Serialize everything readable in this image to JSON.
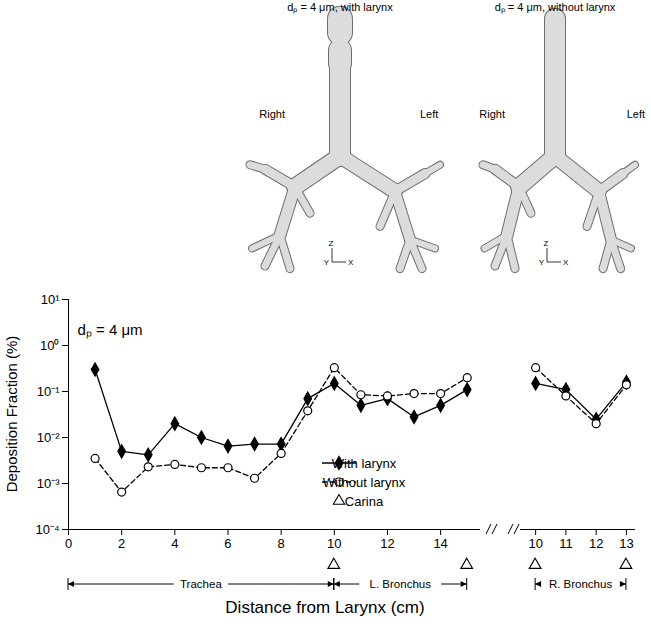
{
  "chart_data": [
    {
      "type": "line",
      "annotations": [
        "dₚ = 4 μm"
      ],
      "x": [
        1,
        2,
        3,
        4,
        5,
        6,
        7,
        8,
        9,
        10,
        11,
        12,
        13,
        14,
        15
      ],
      "series": [
        {
          "name": "With larynx",
          "color": "#000000",
          "marker": "diamond",
          "line_style": "solid",
          "values": [
            0.3,
            0.005,
            0.0042,
            0.02,
            0.01,
            0.0065,
            0.0072,
            0.0072,
            0.07,
            0.15,
            0.05,
            0.07,
            0.028,
            0.05,
            0.11
          ]
        },
        {
          "name": "Without larynx",
          "color": "#000000",
          "marker": "circle",
          "line_style": "dashed",
          "values": [
            0.0035,
            0.00065,
            0.0023,
            0.0026,
            0.0022,
            0.0022,
            0.0013,
            0.0045,
            0.038,
            0.33,
            0.085,
            0.08,
            0.09,
            0.09,
            0.2
          ]
        }
      ],
      "xlim": [
        0,
        15.5
      ],
      "xticks": [
        0,
        2,
        4,
        6,
        8,
        10,
        12,
        14
      ],
      "ylim": [
        0.0001,
        10
      ],
      "yticks": [
        {
          "value": 0.0001,
          "label": "10⁻⁴"
        },
        {
          "value": 0.001,
          "label": "10⁻³"
        },
        {
          "value": 0.01,
          "label": "10⁻²"
        },
        {
          "value": 0.1,
          "label": "10⁻¹"
        },
        {
          "value": 1,
          "label": "10⁰"
        },
        {
          "value": 10,
          "label": "10¹"
        }
      ],
      "log": "y",
      "legend": "lower right",
      "x_label": "Distance from Larynx (cm)",
      "y_label": "Deposition Fraction (%)",
      "carina": {
        "name": "Carina",
        "marker": "triangle",
        "x": [
          10,
          15
        ]
      },
      "regions": [
        {
          "label": "Trachea",
          "from": 0,
          "to": 10
        },
        {
          "label": "L. Bronchus",
          "from": 10,
          "to": 15
        }
      ]
    },
    {
      "type": "line",
      "x": [
        10,
        11,
        12,
        13
      ],
      "series": [
        {
          "name": "With larynx",
          "color": "#000000",
          "marker": "diamond",
          "line_style": "solid",
          "values": [
            0.15,
            0.11,
            0.025,
            0.16
          ]
        },
        {
          "name": "Without larynx",
          "color": "#000000",
          "marker": "circle",
          "line_style": "dashed",
          "values": [
            0.33,
            0.08,
            0.02,
            0.14
          ]
        }
      ],
      "xlim": [
        9.5,
        13.3
      ],
      "xticks": [
        10,
        11,
        12,
        13
      ],
      "ylim": [
        0.0001,
        10
      ],
      "log": "y",
      "tick_labels": "x",
      "carina": {
        "marker": "triangle",
        "x": [
          10,
          13
        ]
      },
      "regions": [
        {
          "label": "R. Bronchus",
          "from": 10,
          "to": 13
        }
      ]
    }
  ],
  "images": [
    {
      "title": "dₚ = 4 μm, with larynx",
      "labels": [
        "Right",
        "Left"
      ],
      "axes": [
        "Z",
        "Y",
        "X"
      ]
    },
    {
      "title": "dₚ = 4 μm, without larynx",
      "labels": [
        "Right",
        "Left"
      ],
      "axes": [
        "Z",
        "Y",
        "X"
      ]
    }
  ]
}
